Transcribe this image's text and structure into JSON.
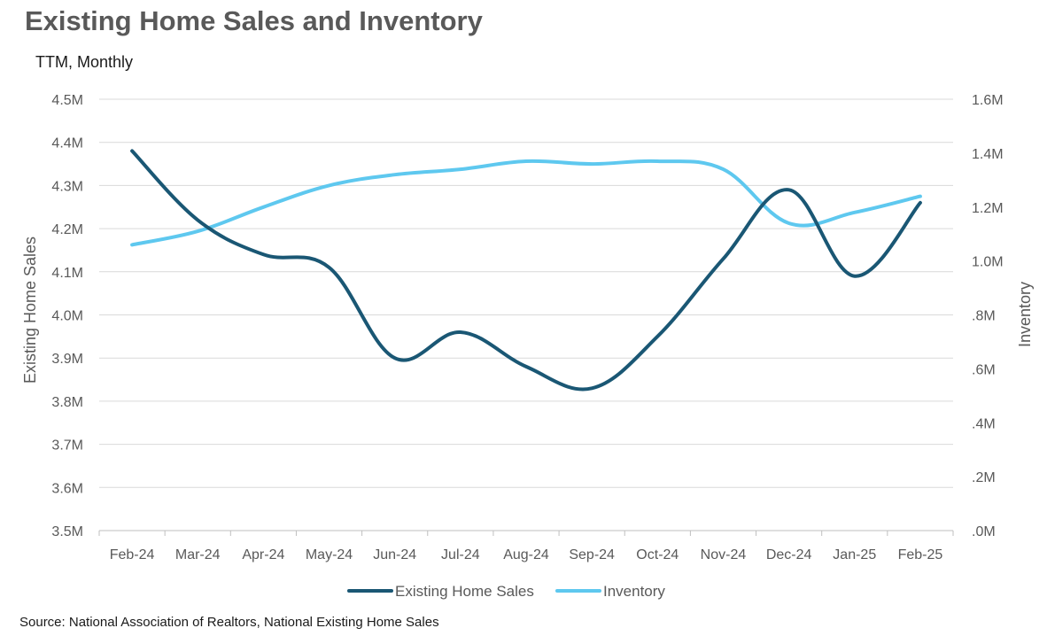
{
  "chart_data": {
    "type": "line",
    "title": "Existing Home Sales and Inventory",
    "subtitle": "TTM, Monthly",
    "source": "Source: National Association of Realtors, National Existing Home Sales",
    "categories": [
      "Feb-24",
      "Mar-24",
      "Apr-24",
      "May-24",
      "Jun-24",
      "Jul-24",
      "Aug-24",
      "Sep-24",
      "Oct-24",
      "Nov-24",
      "Dec-24",
      "Jan-25",
      "Feb-25"
    ],
    "ylabel": "Existing Home Sales",
    "y2label": "Inventory",
    "ylim": [
      3.5,
      4.5
    ],
    "y2lim": [
      0,
      1.6
    ],
    "yticks": [
      "3.5M",
      "3.6M",
      "3.7M",
      "3.8M",
      "3.9M",
      "4.0M",
      "4.1M",
      "4.2M",
      "4.3M",
      "4.4M",
      "4.5M"
    ],
    "y2ticks": [
      ".0M",
      ".2M",
      ".4M",
      ".6M",
      ".8M",
      "1.0M",
      "1.2M",
      "1.4M",
      "1.6M"
    ],
    "grid": true,
    "legend_position": "bottom",
    "series": [
      {
        "name": "Existing Home Sales",
        "axis": "left",
        "color": "#1a5774",
        "values": [
          4.38,
          4.22,
          4.14,
          4.11,
          3.9,
          3.96,
          3.88,
          3.83,
          3.95,
          4.13,
          4.29,
          4.09,
          4.26
        ]
      },
      {
        "name": "Inventory",
        "axis": "right",
        "color": "#5ec8ef",
        "values": [
          1.06,
          1.11,
          1.2,
          1.28,
          1.32,
          1.34,
          1.37,
          1.36,
          1.37,
          1.34,
          1.14,
          1.18,
          1.24
        ]
      }
    ]
  }
}
